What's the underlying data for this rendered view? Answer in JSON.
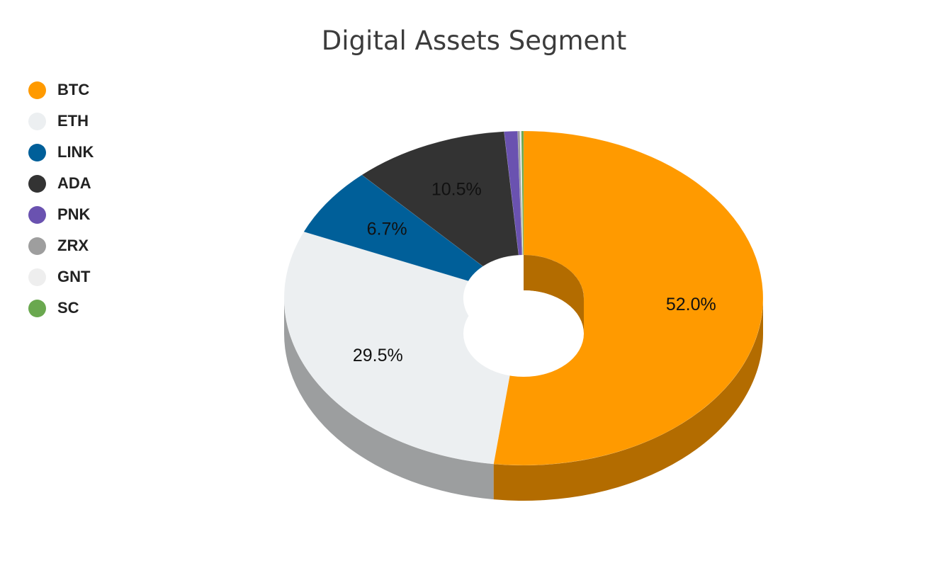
{
  "chart_data": {
    "type": "pie",
    "variant": "3d-donut",
    "title": "Digital Assets Segment",
    "legend_position": "top-left",
    "start_angle_deg": 90,
    "direction": "clockwise",
    "categories": [
      "BTC",
      "ETH",
      "LINK",
      "ADA",
      "PNK",
      "ZRX",
      "GNT",
      "SC"
    ],
    "values": [
      52.0,
      29.5,
      6.7,
      10.5,
      0.9,
      0.15,
      0.1,
      0.15
    ],
    "colors": [
      "#FF9A00",
      "#ECEFF1",
      "#005F99",
      "#333333",
      "#6A52B0",
      "#9E9E9E",
      "#EEEEEE",
      "#6AA84F"
    ],
    "data_labels": [
      "52.0%",
      "29.5%",
      "6.7%",
      "10.5%",
      "",
      "",
      "",
      ""
    ]
  }
}
